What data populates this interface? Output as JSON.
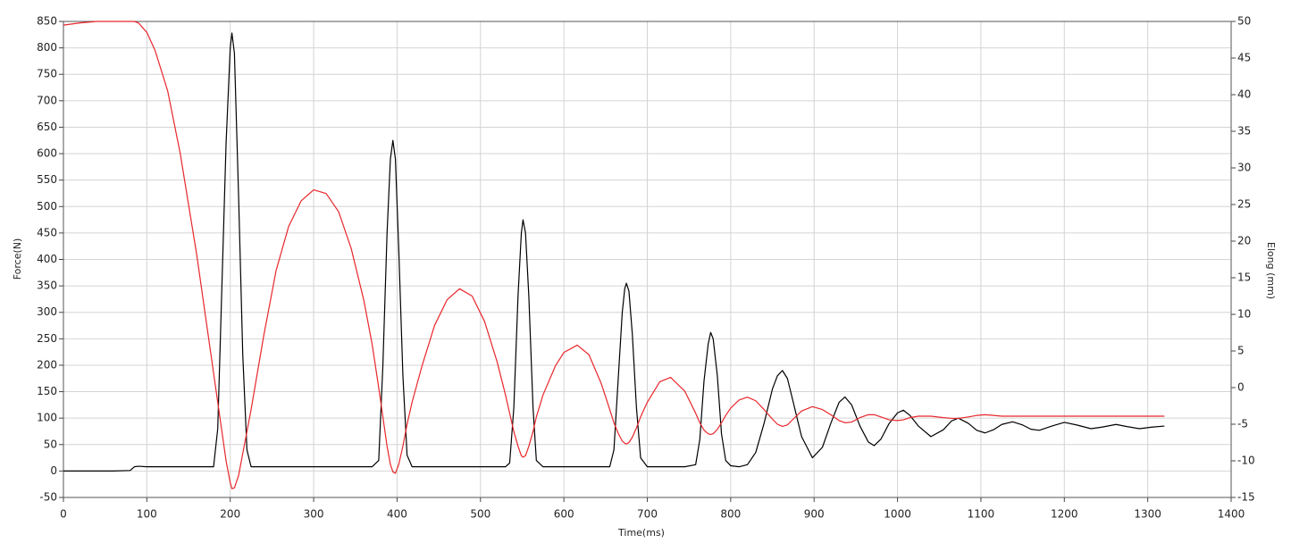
{
  "chart_data": {
    "type": "line",
    "xlabel": "Time(ms)",
    "ylabel": "Force(N)",
    "y2label": "Elong (mm)",
    "grid": true,
    "xlim": [
      0,
      1400
    ],
    "xticks": [
      0,
      100,
      200,
      300,
      400,
      500,
      600,
      700,
      800,
      900,
      1000,
      1100,
      1200,
      1300,
      1400
    ],
    "ylim": [
      -50,
      850
    ],
    "yticks": [
      -50,
      0,
      50,
      100,
      150,
      200,
      250,
      300,
      350,
      400,
      450,
      500,
      550,
      600,
      650,
      700,
      750,
      800,
      850
    ],
    "y2lim": [
      -15,
      50
    ],
    "y2ticks": [
      -15,
      -10,
      -5,
      0,
      5,
      10,
      15,
      20,
      25,
      30,
      35,
      40,
      45,
      50
    ],
    "x": [
      0,
      20,
      40,
      60,
      80,
      85,
      90,
      100,
      110,
      125,
      140,
      150,
      160,
      170,
      180,
      185,
      190,
      195,
      200,
      202,
      205,
      210,
      215,
      220,
      225,
      240,
      255,
      270,
      285,
      300,
      315,
      330,
      345,
      360,
      370,
      378,
      383,
      388,
      392,
      395,
      398,
      402,
      407,
      412,
      418,
      430,
      445,
      460,
      475,
      490,
      505,
      520,
      530,
      535,
      540,
      545,
      549,
      551,
      554,
      558,
      563,
      567,
      575,
      590,
      600,
      616,
      630,
      645,
      655,
      660,
      665,
      670,
      673,
      675,
      678,
      682,
      687,
      692,
      700,
      715,
      728,
      745,
      758,
      763,
      768,
      773,
      776,
      779,
      784,
      789,
      794,
      800,
      810,
      820,
      830,
      840,
      850,
      856,
      862,
      868,
      875,
      885,
      898,
      910,
      920,
      930,
      937,
      945,
      955,
      965,
      972,
      980,
      990,
      1000,
      1007,
      1015,
      1025,
      1040,
      1055,
      1065,
      1073,
      1085,
      1095,
      1105,
      1115,
      1125,
      1138,
      1150,
      1160,
      1170,
      1185,
      1200,
      1215,
      1232,
      1245,
      1262,
      1275,
      1290,
      1305,
      1320
    ],
    "series": [
      {
        "color": "#000000",
        "values": [
          0,
          0,
          0,
          0,
          1,
          8,
          9,
          8,
          8,
          8,
          8,
          8,
          8,
          8,
          8,
          80,
          350,
          620,
          800,
          828,
          790,
          520,
          220,
          40,
          8,
          8,
          8,
          8,
          8,
          8,
          8,
          8,
          8,
          8,
          8,
          20,
          200,
          450,
          590,
          625,
          590,
          420,
          180,
          30,
          8,
          8,
          8,
          8,
          8,
          8,
          8,
          8,
          8,
          15,
          120,
          330,
          450,
          475,
          450,
          330,
          120,
          20,
          8,
          8,
          8,
          8,
          8,
          8,
          8,
          40,
          170,
          300,
          345,
          355,
          340,
          260,
          120,
          25,
          8,
          8,
          8,
          8,
          12,
          60,
          170,
          240,
          262,
          250,
          180,
          70,
          20,
          10,
          8,
          12,
          35,
          90,
          155,
          180,
          190,
          175,
          130,
          65,
          25,
          45,
          90,
          130,
          140,
          125,
          85,
          55,
          48,
          60,
          90,
          110,
          115,
          105,
          85,
          65,
          78,
          95,
          100,
          90,
          77,
          72,
          78,
          88,
          93,
          87,
          79,
          77,
          85,
          92,
          87,
          80,
          83,
          88,
          84,
          80,
          83,
          85
        ]
      },
      {
        "color": "#e8262b",
        "axis": "y2",
        "values": [
          49.5,
          49.8,
          50,
          50,
          50,
          50,
          49.8,
          48.5,
          46,
          40.5,
          32,
          25,
          18,
          10,
          2,
          -2,
          -6,
          -10,
          -13,
          -13.8,
          -13.7,
          -12,
          -9,
          -6,
          -3,
          7,
          16,
          22,
          25.5,
          27,
          26.5,
          24,
          19,
          12,
          6,
          0,
          -4,
          -8,
          -10.5,
          -11.5,
          -11.7,
          -10.5,
          -8,
          -5,
          -2,
          3,
          8.5,
          12,
          13.5,
          12.5,
          9,
          3.5,
          -1,
          -3.5,
          -6,
          -8,
          -9.3,
          -9.5,
          -9.3,
          -8,
          -6,
          -4,
          -1,
          3,
          4.8,
          5.8,
          4.5,
          0.5,
          -3,
          -4.8,
          -6.2,
          -7.3,
          -7.6,
          -7.7,
          -7.5,
          -6.8,
          -5.5,
          -4,
          -2,
          0.8,
          1.4,
          -0.5,
          -3.5,
          -4.8,
          -5.8,
          -6.3,
          -6.4,
          -6.3,
          -5.7,
          -4.8,
          -3.8,
          -2.8,
          -1.7,
          -1.3,
          -1.8,
          -3,
          -4.3,
          -5,
          -5.3,
          -5.1,
          -4.3,
          -3.2,
          -2.6,
          -3,
          -3.7,
          -4.5,
          -4.8,
          -4.7,
          -4.1,
          -3.7,
          -3.7,
          -4,
          -4.4,
          -4.5,
          -4.4,
          -4.1,
          -3.9,
          -3.9,
          -4.1,
          -4.2,
          -4.2,
          -4,
          -3.8,
          -3.7,
          -3.8,
          -3.9,
          -3.9,
          -3.9,
          -3.9,
          -3.9,
          -3.9,
          -3.9,
          -3.9,
          -3.9,
          -3.9,
          -3.9,
          -3.9,
          -3.9,
          -3.9,
          -3.9
        ]
      }
    ]
  }
}
